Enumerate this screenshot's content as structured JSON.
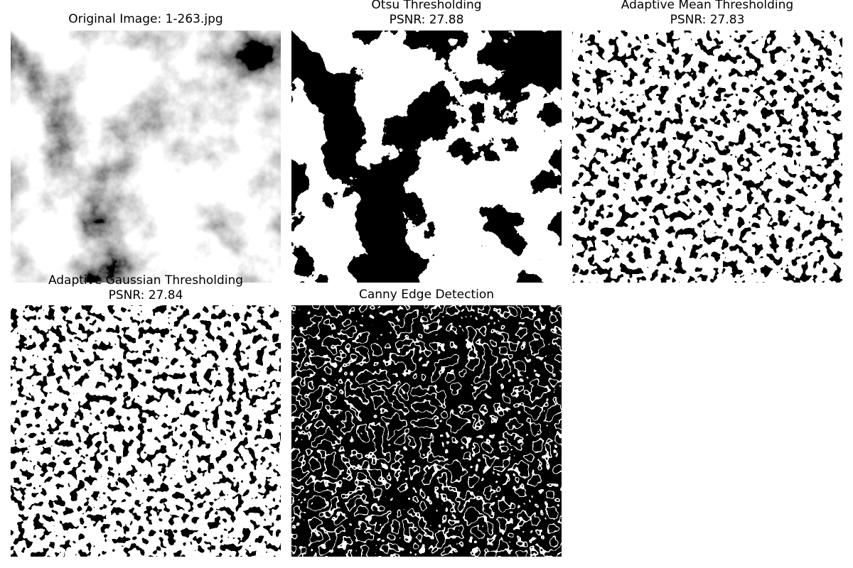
{
  "panels": [
    {
      "id": "original",
      "title_lines": [
        "Original Image: 1-263.jpg"
      ]
    },
    {
      "id": "otsu",
      "title_lines": [
        "Otsu Thresholding",
        "PSNR: 27.88"
      ]
    },
    {
      "id": "adaptive-mean",
      "title_lines": [
        "Adaptive Mean Thresholding",
        "PSNR: 27.83"
      ]
    },
    {
      "id": "adaptive-gaussian",
      "title_lines": [
        "Adaptive Gaussian Thresholding",
        "PSNR: 27.84"
      ]
    },
    {
      "id": "canny",
      "title_lines": [
        "Canny Edge Detection"
      ]
    }
  ],
  "colors": {
    "background": "#ffffff",
    "dark": "#000000",
    "light": "#ffffff"
  }
}
